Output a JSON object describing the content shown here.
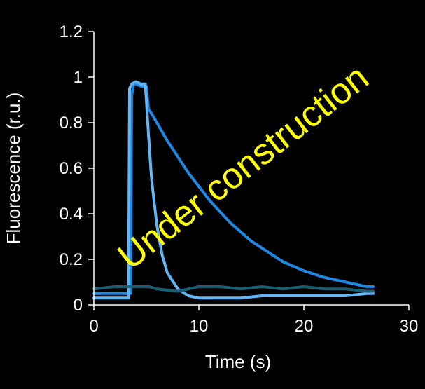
{
  "chart_data": {
    "type": "line",
    "xlabel": "Time (s)",
    "ylabel": "Fluorescence (r.u.)",
    "xlim": [
      0,
      30
    ],
    "ylim": [
      0,
      1.2
    ],
    "x_ticks": [
      "0",
      "10",
      "20",
      "30"
    ],
    "y_ticks": [
      "0",
      "0.2",
      "0.4",
      "0.6",
      "0.8",
      "1",
      "1.2"
    ],
    "grid": false,
    "legend": "none",
    "background_color": "#000000",
    "axis_color": "#ffffff",
    "series": [
      {
        "color": "#1e88e5",
        "x": [
          0,
          3.5,
          3.6,
          3.8,
          4.0,
          4.5,
          5.0,
          5.2,
          5.5,
          6,
          7,
          8,
          9,
          10,
          11,
          12,
          13,
          14,
          15,
          16,
          18,
          20,
          22,
          24,
          26,
          26.6
        ],
        "y": [
          0.05,
          0.05,
          0.92,
          0.97,
          0.97,
          0.96,
          0.96,
          0.86,
          0.84,
          0.8,
          0.72,
          0.65,
          0.58,
          0.52,
          0.46,
          0.41,
          0.36,
          0.32,
          0.28,
          0.25,
          0.19,
          0.15,
          0.12,
          0.1,
          0.08,
          0.08
        ]
      },
      {
        "color": "#64b5f6",
        "x": [
          0,
          3.3,
          3.4,
          3.6,
          4.0,
          4.5,
          4.9,
          5.0,
          5.2,
          5.5,
          6,
          6.5,
          7,
          8,
          9,
          10,
          12,
          14,
          16,
          18,
          20,
          22,
          24,
          26,
          26.6
        ],
        "y": [
          0.03,
          0.03,
          0.95,
          0.97,
          0.98,
          0.97,
          0.97,
          0.9,
          0.75,
          0.55,
          0.35,
          0.22,
          0.14,
          0.07,
          0.04,
          0.03,
          0.03,
          0.03,
          0.04,
          0.04,
          0.04,
          0.04,
          0.04,
          0.05,
          0.05
        ]
      },
      {
        "color": "#1c5f73",
        "x": [
          0,
          2,
          3.2,
          5.3,
          6,
          8,
          10,
          12,
          14,
          16,
          18,
          20,
          22,
          24,
          26,
          26.6
        ],
        "y": [
          0.07,
          0.08,
          0.08,
          0.08,
          0.07,
          0.06,
          0.08,
          0.08,
          0.07,
          0.08,
          0.07,
          0.08,
          0.07,
          0.07,
          0.06,
          0.06
        ]
      }
    ],
    "annotations": [
      {
        "text": "Under construction",
        "color": "#ffff00"
      }
    ]
  }
}
